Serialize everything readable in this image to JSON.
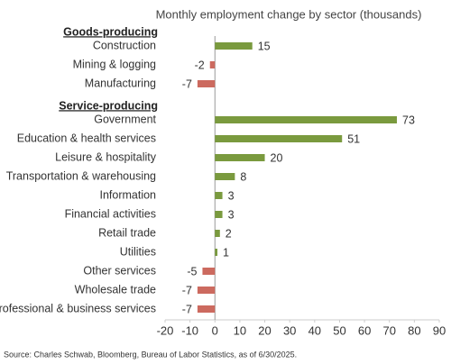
{
  "chart_data": {
    "type": "bar",
    "orientation": "horizontal",
    "title": "Monthly employment change by sector (thousands)",
    "groups": [
      {
        "name": "Goods-producing",
        "categories": [
          "Construction",
          "Mining & logging",
          "Manufacturing"
        ],
        "values": [
          15,
          -2,
          -7
        ]
      },
      {
        "name": "Service-producing",
        "categories": [
          "Government",
          "Education & health services",
          "Leisure & hospitality",
          "Transportation & warehousing",
          "Information",
          "Financial activities",
          "Retail trade",
          "Utilities",
          "Other services",
          "Wholesale trade",
          "Professional & business services"
        ],
        "values": [
          73,
          51,
          20,
          8,
          3,
          3,
          2,
          1,
          -5,
          -7,
          -7
        ]
      }
    ],
    "positive_color": "#7a9a3e",
    "negative_color": "#cc6a5f",
    "xlim": [
      -20,
      90
    ],
    "xticks": [
      -20,
      -10,
      0,
      10,
      20,
      30,
      40,
      50,
      60,
      70,
      80,
      90
    ],
    "grid": false,
    "source": "Source: Charles Schwab, Bloomberg, Bureau of Labor Statistics, as of 6/30/2025."
  }
}
